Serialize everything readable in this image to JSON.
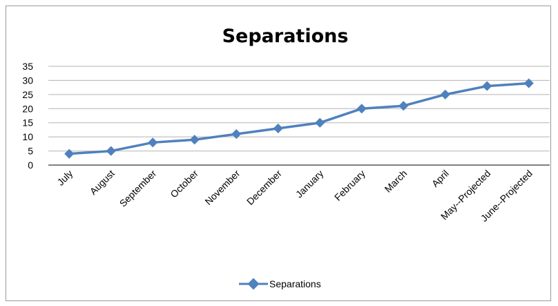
{
  "chart_data": {
    "type": "line",
    "title": "Separations",
    "xlabel": "",
    "ylabel": "",
    "categories": [
      "July",
      "August",
      "September",
      "October",
      "November",
      "December",
      "January",
      "February",
      "March",
      "April",
      "May--Projected",
      "June--Projected"
    ],
    "series": [
      {
        "name": "Separations",
        "values": [
          4,
          5,
          8,
          9,
          11,
          13,
          15,
          20,
          21,
          25,
          28,
          29
        ]
      }
    ],
    "ylim": [
      0,
      35
    ],
    "yticks": [
      0,
      5,
      10,
      15,
      20,
      25,
      30,
      35
    ],
    "grid": true,
    "legend_position": "bottom",
    "colors": {
      "series": "#4f81bd",
      "grid": "#b3b3b3",
      "axis": "#808080"
    }
  }
}
